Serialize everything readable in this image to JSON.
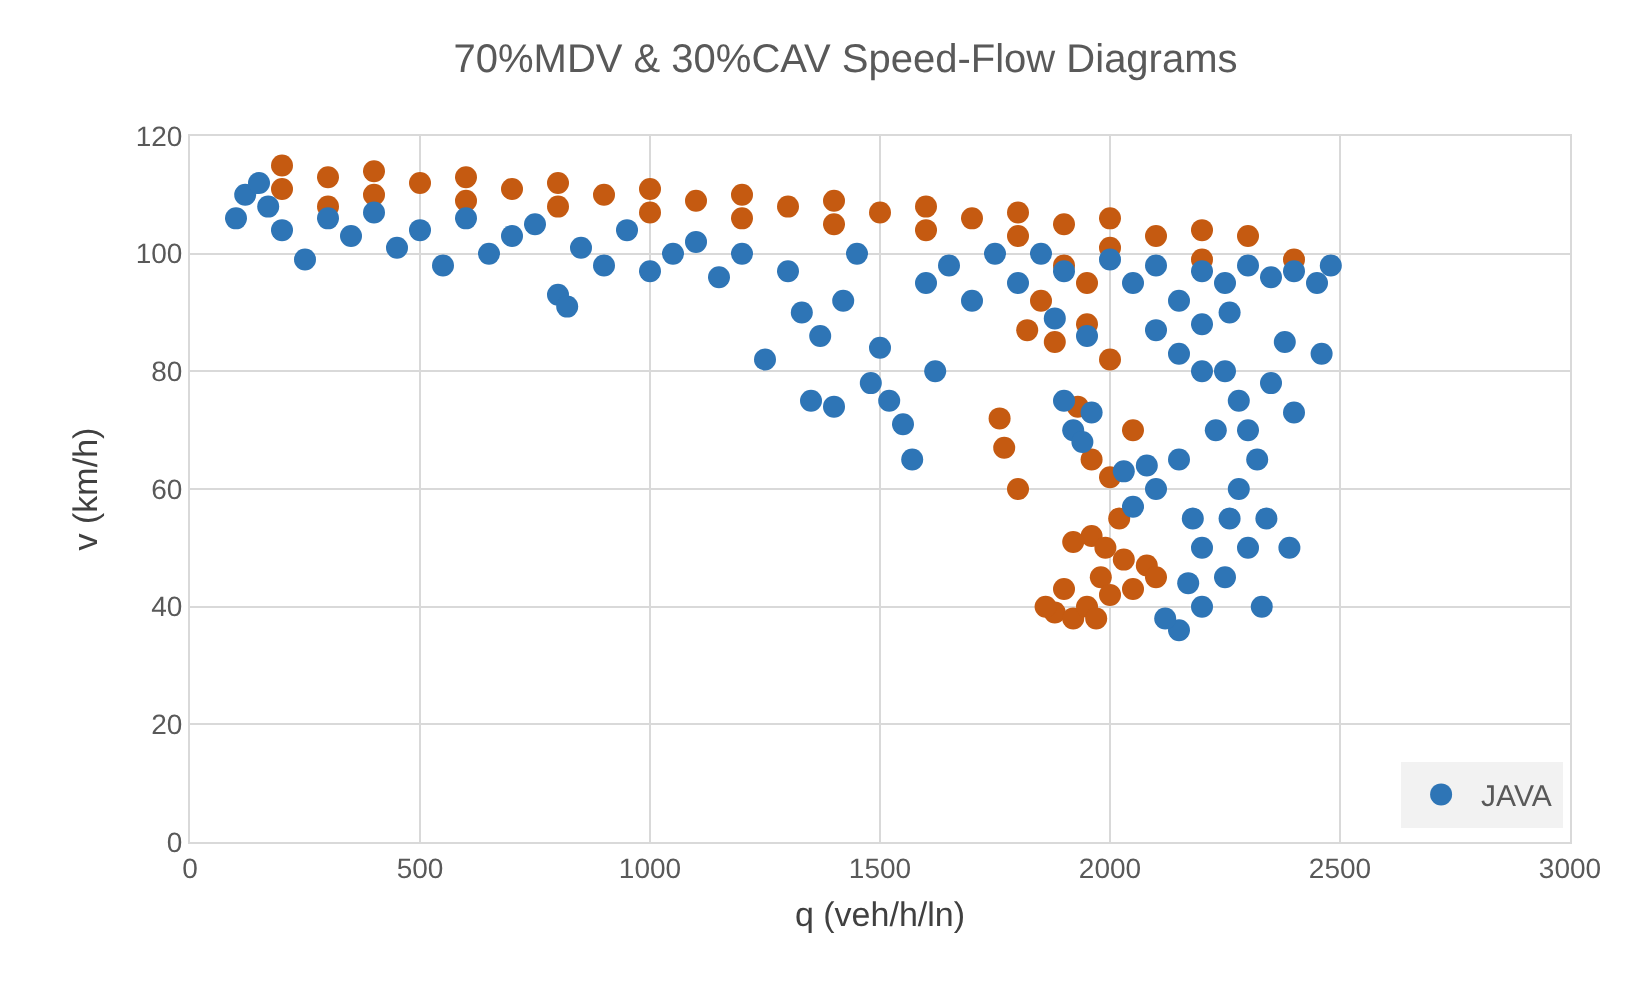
{
  "chart_data": {
    "type": "scatter",
    "title": "70%MDV & 30%CAV Speed-Flow Diagrams",
    "xlabel": "q (veh/h/ln)",
    "ylabel": "v (km/h)",
    "xlim": [
      0,
      3000
    ],
    "xticks": [
      0,
      500,
      1000,
      1500,
      2000,
      2500,
      3000
    ],
    "ylim": [
      0,
      120
    ],
    "yticks": [
      0,
      20,
      40,
      60,
      80,
      100,
      120
    ],
    "grid": true,
    "legend": "bottom right",
    "marker": "circle",
    "series": [
      {
        "color": "#c55a11",
        "x": [
          200,
          200,
          300,
          300,
          400,
          400,
          500,
          600,
          600,
          700,
          800,
          800,
          900,
          1000,
          1000,
          1100,
          1200,
          1200,
          1300,
          1400,
          1400,
          1500,
          1600,
          1600,
          1700,
          1800,
          1800,
          1900,
          2000,
          2000,
          2100,
          2200,
          2200,
          2300,
          2400,
          1900,
          1950,
          1850,
          1820,
          1880,
          1950,
          2000,
          1760,
          1770,
          1800,
          1930,
          2050,
          1960,
          2000,
          1960,
          1920,
          1900,
          1880,
          1920,
          1950,
          1980,
          2000,
          2030,
          2050,
          2080,
          1990,
          2100,
          1970,
          1860,
          2020
        ],
        "values": [
          115,
          111,
          113,
          108,
          114,
          110,
          112,
          113,
          109,
          111,
          112,
          108,
          110,
          111,
          107,
          109,
          110,
          106,
          108,
          109,
          105,
          107,
          108,
          104,
          106,
          107,
          103,
          105,
          106,
          101,
          103,
          104,
          99,
          103,
          99,
          98,
          95,
          92,
          87,
          85,
          88,
          82,
          72,
          67,
          60,
          74,
          70,
          65,
          62,
          52,
          51,
          43,
          39,
          38,
          40,
          45,
          42,
          48,
          43,
          47,
          50,
          45,
          38,
          40,
          55
        ]
      },
      {
        "name": "JAVA",
        "color": "#2e75b6",
        "x": [
          100,
          120,
          150,
          170,
          200,
          250,
          300,
          350,
          400,
          450,
          500,
          550,
          600,
          650,
          700,
          750,
          800,
          820,
          850,
          900,
          950,
          1000,
          1050,
          1100,
          1150,
          1200,
          1250,
          1300,
          1330,
          1350,
          1370,
          1400,
          1420,
          1450,
          1480,
          1500,
          1520,
          1550,
          1570,
          1600,
          1620,
          1650,
          1700,
          1750,
          1800,
          1850,
          1880,
          1900,
          1950,
          2000,
          2050,
          2100,
          2150,
          2200,
          2250,
          2300,
          2350,
          2400,
          2450,
          2480,
          2460,
          2380,
          1900,
          1920,
          1960,
          1940,
          2030,
          2080,
          2100,
          2050,
          2150,
          2180,
          2200,
          2250,
          2280,
          2300,
          2320,
          2280,
          2260,
          2300,
          2250,
          2200,
          2150,
          2120,
          2170,
          2330,
          2390,
          2400,
          2350,
          2200,
          2230,
          2340,
          2260,
          2200,
          2150,
          2100
        ],
        "values": [
          106,
          110,
          112,
          108,
          104,
          99,
          106,
          103,
          107,
          101,
          104,
          98,
          106,
          100,
          103,
          105,
          93,
          91,
          101,
          98,
          104,
          97,
          100,
          102,
          96,
          100,
          82,
          97,
          90,
          75,
          86,
          74,
          92,
          100,
          78,
          84,
          75,
          71,
          65,
          95,
          80,
          98,
          92,
          100,
          95,
          100,
          89,
          97,
          86,
          99,
          95,
          98,
          92,
          97,
          95,
          98,
          96,
          97,
          95,
          98,
          83,
          85,
          75,
          70,
          73,
          68,
          63,
          64,
          60,
          57,
          65,
          55,
          50,
          80,
          75,
          70,
          65,
          60,
          55,
          50,
          45,
          40,
          36,
          38,
          44,
          40,
          50,
          73,
          78,
          80,
          70,
          55,
          90,
          88,
          83,
          87
        ]
      }
    ]
  }
}
